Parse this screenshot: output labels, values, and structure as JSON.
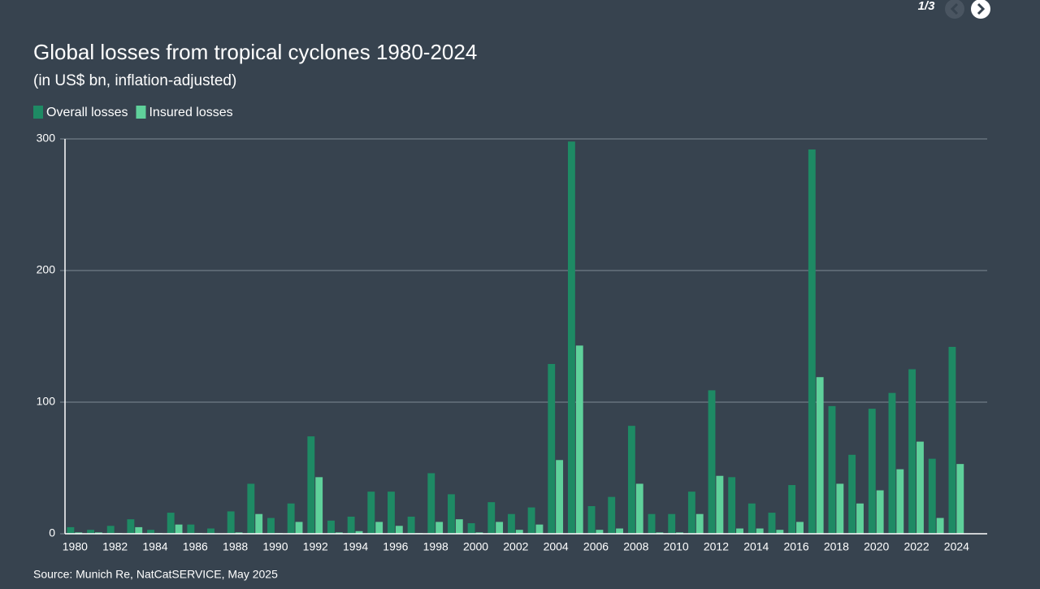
{
  "nav": {
    "page_indicator": "1/3"
  },
  "chart_data": {
    "type": "bar",
    "title": "Global losses from tropical cyclones 1980-2024",
    "subtitle": "(in US$ bn, inflation-adjusted)",
    "source": "Source: Munich Re, NatCatSERVICE, May 2025",
    "categories": [
      "1980",
      null,
      "1982",
      null,
      "1984",
      null,
      "1986",
      null,
      "1988",
      null,
      "1990",
      null,
      "1992",
      null,
      "1994",
      null,
      "1996",
      null,
      "1998",
      null,
      "2000",
      null,
      "2002",
      null,
      "2004",
      null,
      "2006",
      null,
      "2008",
      null,
      "2010",
      null,
      "2012",
      null,
      "2014",
      null,
      "2016",
      null,
      "2018",
      null,
      "2020",
      null,
      "2022",
      null,
      "2024"
    ],
    "series": [
      {
        "name": "Overall losses",
        "color": "#1e8a64",
        "values": [
          5,
          3,
          6,
          11,
          3,
          16,
          7,
          4,
          17,
          38,
          12,
          23,
          74,
          10,
          13,
          32,
          32,
          13,
          46,
          30,
          8,
          24,
          15,
          20,
          129,
          298,
          21,
          28,
          82,
          15,
          15,
          32,
          109,
          43,
          23,
          16,
          37,
          292,
          97,
          60,
          95,
          107,
          125,
          57,
          142
        ]
      },
      {
        "name": "Insured losses",
        "color": "#5fd19b",
        "values": [
          1,
          1,
          0.5,
          5,
          0.5,
          7,
          0.5,
          0,
          1,
          15,
          0.5,
          9,
          43,
          1,
          2,
          9,
          6,
          0.5,
          9,
          11,
          1,
          9,
          3,
          7,
          56,
          143,
          3,
          4,
          38,
          1,
          1,
          15,
          44,
          4,
          4,
          3,
          9,
          119,
          38,
          23,
          33,
          49,
          70,
          12,
          53
        ]
      }
    ],
    "ylim": [
      0,
      300
    ],
    "yticks": [
      0,
      100,
      200,
      300
    ],
    "grid": true,
    "legend": "top-left"
  }
}
